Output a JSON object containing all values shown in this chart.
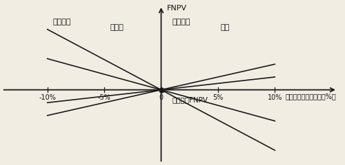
{
  "title_y": "FNPV",
  "title_x": "不确定因素变化幅度（%）",
  "center_label": "基本方案FNPV",
  "x_ticks": [
    -10,
    -5,
    0,
    5,
    10
  ],
  "x_tick_labels": [
    "-10%",
    "-5%",
    "0",
    "5%",
    "10%"
  ],
  "xlim": [
    -14,
    16
  ],
  "ylim": [
    -2.0,
    2.4
  ],
  "origin_x": 0,
  "origin_y": 0,
  "lines": [
    {
      "name": "经营成本",
      "name_x": -9.5,
      "name_y": 1.75,
      "slope": -1.65,
      "color": "#1a1a1a"
    },
    {
      "name": "投资額",
      "name_x": -4.5,
      "name_y": 1.6,
      "slope": -0.85,
      "color": "#1a1a1a"
    },
    {
      "name": "产品价格",
      "name_x": 1.0,
      "name_y": 1.75,
      "slope": 0.7,
      "color": "#1a1a1a"
    },
    {
      "name": "汇率",
      "name_x": 5.2,
      "name_y": 1.6,
      "slope": 0.35,
      "color": "#1a1a1a"
    }
  ],
  "bg_color": "#f2ede3",
  "line_color": "#1a1a1a",
  "font_color": "#111111",
  "axis_lw": 1.3,
  "line_lw": 1.2
}
